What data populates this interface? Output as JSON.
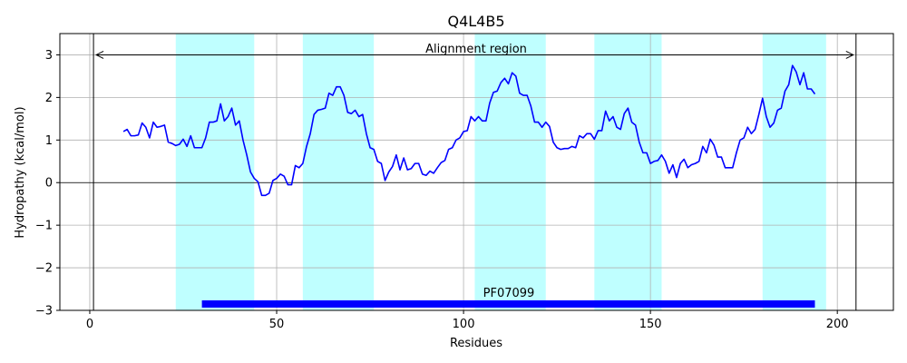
{
  "chart_data": {
    "type": "line",
    "title": "Q4L4B5",
    "xlabel": "Residues",
    "ylabel": "Hydropathy (kcal/mol)",
    "xlim": [
      -8,
      215
    ],
    "ylim": [
      -3,
      3.5
    ],
    "xticks": [
      0,
      50,
      100,
      150,
      200
    ],
    "yticks": [
      -3,
      -2,
      -1,
      0,
      1,
      2,
      3
    ],
    "xtick_labels": [
      "0",
      "50",
      "100",
      "150",
      "200"
    ],
    "ytick_labels": [
      "−3",
      "−2",
      "−1",
      "0",
      "1",
      "2",
      "3"
    ],
    "grid": true,
    "colors": {
      "line": "#0000ff",
      "band": "#00ffff",
      "domain_bar": "#0000ff",
      "grid": "#b0b0b0"
    },
    "alignment_region": {
      "label": "Alignment region",
      "start": 1,
      "end": 205,
      "arrow_y": 3
    },
    "domain": {
      "label": "PF07099",
      "start": 30,
      "end": 194,
      "y": -2.85
    },
    "hydrophobic_bands": [
      [
        23,
        44
      ],
      [
        57,
        76
      ],
      [
        103,
        122
      ],
      [
        135,
        153
      ],
      [
        180,
        197
      ]
    ],
    "series": [
      {
        "x": [
          9,
          10,
          11,
          12,
          13,
          14,
          15,
          16,
          17,
          18,
          19,
          20,
          21,
          22,
          23,
          24,
          25,
          26,
          27,
          28,
          29,
          30,
          31,
          32,
          33,
          34,
          35,
          36,
          37,
          38,
          39,
          40,
          41,
          42,
          43,
          44,
          45,
          46,
          47,
          48,
          49,
          50,
          51,
          52,
          53,
          54,
          55,
          56,
          57,
          58,
          59,
          60,
          61,
          62,
          63,
          64,
          65,
          66,
          67,
          68,
          69,
          70,
          71,
          72,
          73,
          74,
          75,
          76,
          77,
          78,
          79,
          80,
          81,
          82,
          83,
          84,
          85,
          86,
          87,
          88,
          89,
          90,
          91,
          92,
          93,
          94,
          95,
          96,
          97,
          98,
          99,
          100,
          101,
          102,
          103,
          104,
          105,
          106,
          107,
          108,
          109,
          110,
          111,
          112,
          113,
          114,
          115,
          116,
          117,
          118,
          119,
          120,
          121,
          122,
          123,
          124,
          125,
          126,
          127,
          128,
          129,
          130,
          131,
          132,
          133,
          134,
          135,
          136,
          137,
          138,
          139,
          140,
          141,
          142,
          143,
          144,
          145,
          146,
          147,
          148,
          149,
          150,
          151,
          152,
          153,
          154,
          155,
          156,
          157,
          158,
          159,
          160,
          161,
          162,
          163,
          164,
          165,
          166,
          167,
          168,
          169,
          170,
          171,
          172,
          173,
          174,
          175,
          176,
          177,
          178,
          179,
          180,
          181,
          182,
          183,
          184,
          185,
          186,
          187,
          188,
          189,
          190,
          191,
          192,
          193,
          194
        ],
        "values": [
          1.2,
          1.25,
          1.1,
          1.1,
          1.12,
          1.4,
          1.3,
          1.05,
          1.42,
          1.3,
          1.32,
          1.35,
          0.95,
          0.92,
          0.87,
          0.9,
          1.02,
          0.85,
          1.1,
          0.82,
          0.82,
          0.82,
          1.05,
          1.42,
          1.42,
          1.45,
          1.85,
          1.45,
          1.55,
          1.75,
          1.35,
          1.45,
          1.0,
          0.65,
          0.25,
          0.1,
          0.02,
          -0.3,
          -0.3,
          -0.25,
          0.05,
          0.1,
          0.2,
          0.15,
          -0.05,
          -0.05,
          0.4,
          0.35,
          0.45,
          0.85,
          1.15,
          1.6,
          1.7,
          1.72,
          1.75,
          2.1,
          2.05,
          2.25,
          2.25,
          2.05,
          1.65,
          1.62,
          1.7,
          1.55,
          1.6,
          1.15,
          0.82,
          0.78,
          0.5,
          0.45,
          0.05,
          0.25,
          0.38,
          0.65,
          0.3,
          0.58,
          0.3,
          0.33,
          0.45,
          0.45,
          0.2,
          0.17,
          0.27,
          0.22,
          0.35,
          0.47,
          0.52,
          0.78,
          0.82,
          1.0,
          1.05,
          1.2,
          1.22,
          1.55,
          1.45,
          1.55,
          1.45,
          1.45,
          1.87,
          2.12,
          2.15,
          2.35,
          2.45,
          2.32,
          2.58,
          2.5,
          2.1,
          2.05,
          2.05,
          1.8,
          1.42,
          1.42,
          1.3,
          1.42,
          1.32,
          0.95,
          0.82,
          0.78,
          0.8,
          0.8,
          0.85,
          0.82,
          1.1,
          1.05,
          1.15,
          1.15,
          1.02,
          1.22,
          1.22,
          1.68,
          1.45,
          1.55,
          1.3,
          1.25,
          1.62,
          1.75,
          1.42,
          1.35,
          0.95,
          0.7,
          0.7,
          0.45,
          0.5,
          0.52,
          0.65,
          0.5,
          0.22,
          0.42,
          0.12,
          0.45,
          0.55,
          0.35,
          0.42,
          0.45,
          0.5,
          0.85,
          0.7,
          1.02,
          0.88,
          0.6,
          0.6,
          0.35,
          0.35,
          0.35,
          0.7,
          1.0,
          1.05,
          1.3,
          1.15,
          1.25,
          1.6,
          1.98,
          1.55,
          1.3,
          1.4,
          1.7,
          1.75,
          2.15,
          2.3,
          2.75,
          2.6,
          2.3,
          2.58,
          2.2,
          2.2,
          2.08
        ]
      }
    ]
  }
}
